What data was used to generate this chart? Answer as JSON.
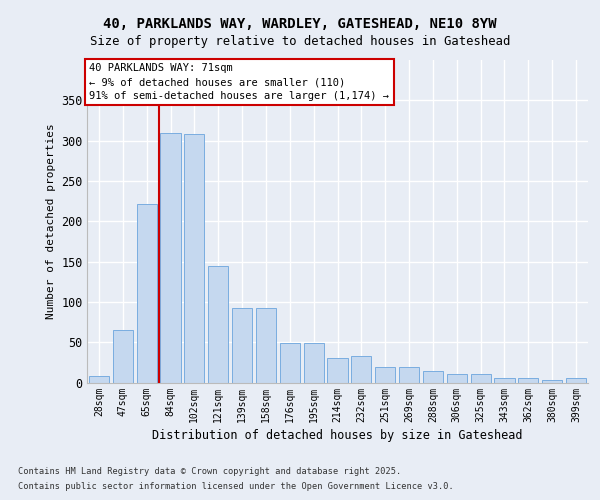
{
  "title_line1": "40, PARKLANDS WAY, WARDLEY, GATESHEAD, NE10 8YW",
  "title_line2": "Size of property relative to detached houses in Gateshead",
  "xlabel": "Distribution of detached houses by size in Gateshead",
  "ylabel": "Number of detached properties",
  "categories": [
    "28sqm",
    "47sqm",
    "65sqm",
    "84sqm",
    "102sqm",
    "121sqm",
    "139sqm",
    "158sqm",
    "176sqm",
    "195sqm",
    "214sqm",
    "232sqm",
    "251sqm",
    "269sqm",
    "288sqm",
    "306sqm",
    "325sqm",
    "343sqm",
    "362sqm",
    "380sqm",
    "399sqm"
  ],
  "bar_values": [
    8,
    65,
    222,
    310,
    308,
    145,
    92,
    92,
    49,
    49,
    31,
    33,
    19,
    19,
    14,
    11,
    10,
    5,
    5,
    3,
    5
  ],
  "bar_color": "#c5d8ef",
  "bar_edge_color": "#7aade0",
  "vline_x": 2.5,
  "vline_color": "#cc0000",
  "annotation_text": "40 PARKLANDS WAY: 71sqm\n← 9% of detached houses are smaller (110)\n91% of semi-detached houses are larger (1,174) →",
  "ann_edge_color": "#cc0000",
  "ylim_max": 400,
  "yticks": [
    0,
    50,
    100,
    150,
    200,
    250,
    300,
    350
  ],
  "footer_line1": "Contains HM Land Registry data © Crown copyright and database right 2025.",
  "footer_line2": "Contains public sector information licensed under the Open Government Licence v3.0.",
  "bg_color": "#e8edf5",
  "grid_color": "#ffffff"
}
